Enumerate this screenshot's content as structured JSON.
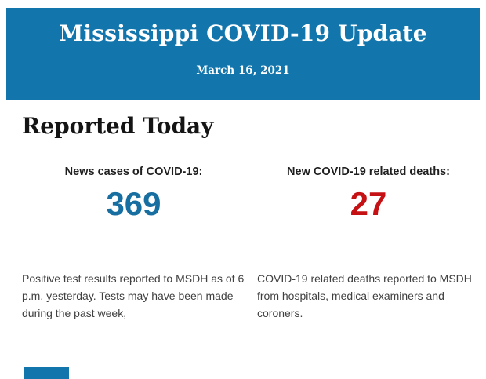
{
  "header": {
    "title": "Mississippi COVID-19 Update",
    "date": "March 16, 2021"
  },
  "section": {
    "heading": "Reported Today"
  },
  "stats": [
    {
      "label": "News cases of COVID-19:",
      "value": "369",
      "description": "Positive test results reported to MSDH as of 6 p.m. yesterday. Tests may have been made during the past week,"
    },
    {
      "label": "New COVID-19 related deaths:",
      "value": "27",
      "description": "COVID-19 related deaths reported to MSDH from hospitals, medical examiners and coroners."
    }
  ],
  "colors": {
    "banner_blue": "#1276ad",
    "cases_blue": "#176ea0",
    "deaths_red": "#c51014"
  }
}
